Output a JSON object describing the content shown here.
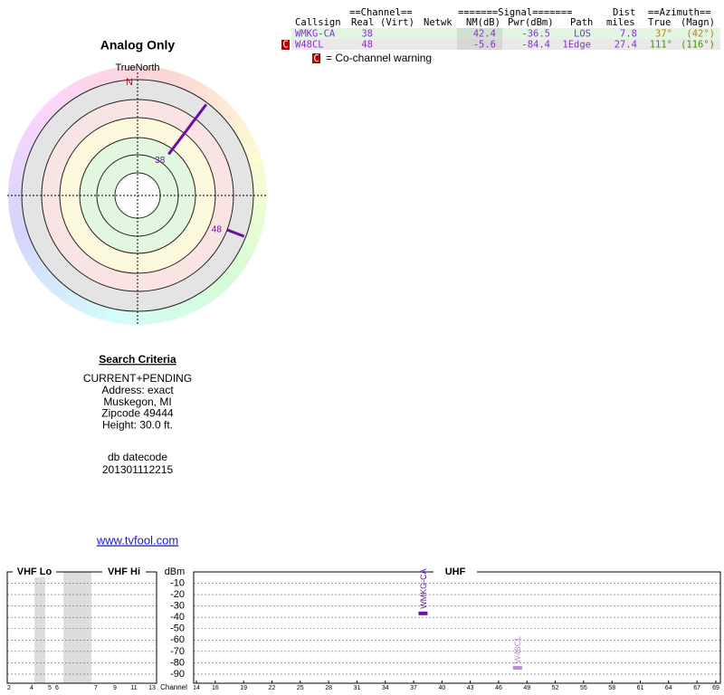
{
  "table": {
    "group_headers": [
      "==Channel==",
      "=======Signal=======",
      "Dist",
      "==Azimuth=="
    ],
    "headers": [
      "Callsign",
      "Real",
      "(Virt)",
      "Netwk",
      "NM(dB)",
      "Pwr(dBm)",
      "Path",
      "miles",
      "True",
      "(Magn)"
    ],
    "rows": [
      {
        "callsign": "WMKG-CA",
        "real": 38,
        "nm": 42.4,
        "pwr": -36.5,
        "path": "LOS",
        "miles": 7.8,
        "true": "37°",
        "magn": "(42°)",
        "background": "#e2f4e2",
        "azimuth_color": "#b8860b"
      },
      {
        "flag": "C",
        "callsign": "W48CL",
        "real": 48,
        "nm": -5.6,
        "pwr": -84.4,
        "path": "1Edge",
        "miles": 27.4,
        "true": "111°",
        "magn": "(116°)",
        "background": "#ece8e8",
        "azimuth_color": "#3a9a00"
      }
    ],
    "legend_flag": "C",
    "legend_text": "= Co-channel warning"
  },
  "chart_data": [
    {
      "type": "polar",
      "title": "Analog Only",
      "north_label": "TrueNorth",
      "north_marker": "N",
      "categories": [
        "38",
        "48"
      ],
      "azimuth": [
        37,
        111
      ],
      "nm": [
        42.4,
        -5.6
      ],
      "color": "#6a0dad"
    },
    {
      "type": "spectrum",
      "ylabel": "dBm",
      "xlabel": "Channel",
      "bands": [
        "VHF Lo",
        "VHF Hi",
        "UHF"
      ],
      "ylim": [
        -98,
        0
      ],
      "yticks": [
        -10,
        -20,
        -30,
        -40,
        -50,
        -60,
        -70,
        -80,
        -90
      ],
      "grid": true,
      "vhf_ticks": [
        2,
        4,
        5,
        6,
        7,
        9,
        11,
        13
      ],
      "xlim": [
        14,
        69
      ],
      "xticks": [
        14,
        16,
        19,
        22,
        25,
        28,
        31,
        34,
        37,
        40,
        43,
        46,
        49,
        52,
        55,
        58,
        61,
        64,
        67,
        69
      ],
      "series": [
        {
          "name": "WMKG-CA",
          "color": "#6a0dad",
          "x": [
            38
          ],
          "values": [
            -36.5
          ]
        },
        {
          "name": "W48CL",
          "color": "#b58ad8",
          "x": [
            48
          ],
          "values": [
            -84.4
          ]
        }
      ]
    }
  ],
  "criteria": {
    "title": "Search Criteria",
    "lines": [
      "CURRENT+PENDING",
      "Address: exact",
      "Muskegon, MI",
      "Zipcode 49444",
      "Height: 30.0 ft."
    ],
    "datecode_label": "db datecode",
    "datecode": "201301112215"
  },
  "link": "www.tvfool.com"
}
